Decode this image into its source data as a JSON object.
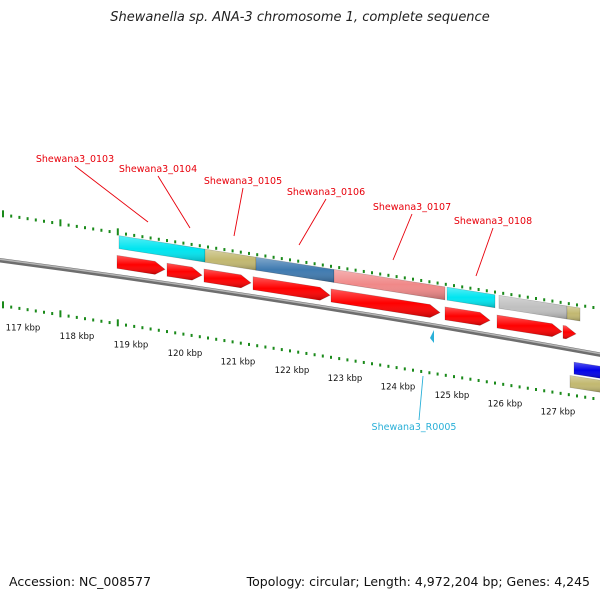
{
  "title": "Shewanella sp. ANA-3 chromosome 1, complete sequence",
  "footer": {
    "accession": "Accession: NC_008577",
    "summary": "Topology: circular; Length: 4,972,204 bp; Genes: 4,245"
  },
  "colors": {
    "gene_label": "#e8000b",
    "rna_label": "#2ab0d8",
    "cds": "#ff0000",
    "tick": "#1a8a1a",
    "backbone": "#8a8a8a"
  },
  "ruler": {
    "labels": [
      "117 kbp",
      "118 kbp",
      "119 kbp",
      "120 kbp",
      "121 kbp",
      "122 kbp",
      "123 kbp",
      "124 kbp",
      "125 kbp",
      "126 kbp",
      "127 kbp"
    ]
  },
  "gene_labels": [
    "Shewana3_0103",
    "Shewana3_0104",
    "Shewana3_0105",
    "Shewana3_0106",
    "Shewana3_0107",
    "Shewana3_0108"
  ],
  "rna_label": "Shewana3_R0005",
  "features": {
    "cds": [
      {
        "color": "#ff0000"
      },
      {
        "color": "#ff0000"
      },
      {
        "color": "#ff0000"
      },
      {
        "color": "#ff0000"
      },
      {
        "color": "#ff0000"
      },
      {
        "color": "#ff0000"
      },
      {
        "color": "#ff0000"
      },
      {
        "color": "#ff0000"
      }
    ],
    "categories": [
      {
        "color": "#00e5f0"
      },
      {
        "color": "#c2b870"
      },
      {
        "color": "#3f7ab0"
      },
      {
        "color": "#f08888"
      },
      {
        "color": "#00e5f0"
      },
      {
        "color": "#c0c0c0"
      },
      {
        "color": "#c2b870"
      }
    ],
    "other": [
      {
        "color": "#0000e8"
      },
      {
        "color": "#c2b870"
      }
    ]
  }
}
